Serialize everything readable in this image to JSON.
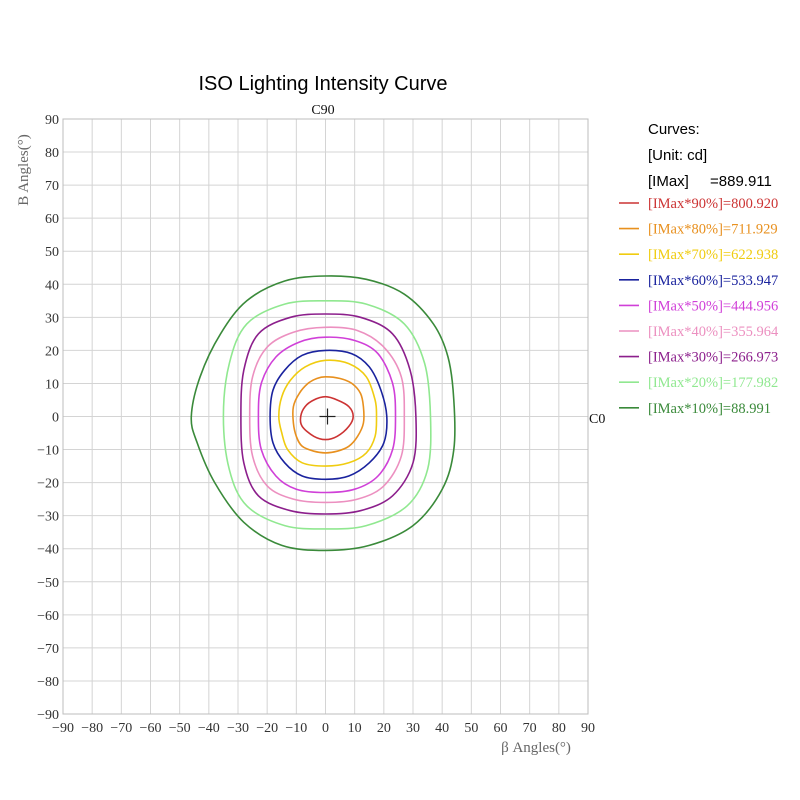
{
  "chart_data": {
    "type": "contour",
    "title": "ISO Lighting Intensity Curve",
    "xlabel": "β  Angles(°)",
    "ylabel": "B Angles(°)",
    "top_label": "C90",
    "right_label": "C0",
    "xlim": [
      -90,
      90
    ],
    "ylim": [
      -90,
      90
    ],
    "x_ticks": [
      -90,
      -80,
      -70,
      -60,
      -50,
      -40,
      -30,
      -20,
      -10,
      0,
      10,
      20,
      30,
      40,
      50,
      60,
      70,
      80,
      90
    ],
    "y_ticks": [
      90,
      80,
      70,
      60,
      50,
      40,
      30,
      20,
      10,
      0,
      -10,
      -20,
      -30,
      -40,
      -50,
      -60,
      -70,
      -80,
      -90
    ],
    "grid": true,
    "legend": {
      "position": "right",
      "header": [
        "Curves:",
        "[Unit: cd]"
      ],
      "imax_label": "[IMax]",
      "imax_value": "=889.911"
    },
    "series": [
      {
        "name": "[IMax*90%]=800.920",
        "color": "#cc3333",
        "points": [
          [
            0,
            6
          ],
          [
            4,
            5
          ],
          [
            8,
            3
          ],
          [
            9.5,
            0
          ],
          [
            8,
            -3
          ],
          [
            4,
            -6
          ],
          [
            0,
            -7
          ],
          [
            -4,
            -6
          ],
          [
            -8,
            -3
          ],
          [
            -8.5,
            0
          ],
          [
            -7,
            3
          ],
          [
            -4,
            5
          ]
        ]
      },
      {
        "name": "[IMax*80%]=711.929",
        "color": "#e8901e",
        "points": [
          [
            0,
            12
          ],
          [
            5,
            11.5
          ],
          [
            9,
            10
          ],
          [
            12,
            7
          ],
          [
            13,
            3
          ],
          [
            13,
            -2
          ],
          [
            11,
            -6
          ],
          [
            8,
            -9
          ],
          [
            4,
            -10.5
          ],
          [
            0,
            -11
          ],
          [
            -4,
            -10.5
          ],
          [
            -8,
            -9
          ],
          [
            -10,
            -6
          ],
          [
            -11,
            -2
          ],
          [
            -11,
            3
          ],
          [
            -9,
            7
          ],
          [
            -6,
            10
          ],
          [
            -3,
            11.5
          ]
        ]
      },
      {
        "name": "[IMax*70%]=622.938",
        "color": "#f0cc10",
        "points": [
          [
            0,
            17
          ],
          [
            8,
            16
          ],
          [
            14,
            12
          ],
          [
            17,
            5
          ],
          [
            17.5,
            0
          ],
          [
            17,
            -6
          ],
          [
            14,
            -11
          ],
          [
            8,
            -14
          ],
          [
            0,
            -15
          ],
          [
            -8,
            -14
          ],
          [
            -13,
            -10
          ],
          [
            -15,
            -5
          ],
          [
            -16,
            0
          ],
          [
            -15,
            6
          ],
          [
            -12,
            11
          ],
          [
            -7,
            15
          ]
        ]
      },
      {
        "name": "[IMax*60%]=533.947",
        "color": "#1a239e",
        "points": [
          [
            0,
            20
          ],
          [
            9,
            19
          ],
          [
            15,
            15
          ],
          [
            19,
            8
          ],
          [
            21,
            0
          ],
          [
            20,
            -8
          ],
          [
            15,
            -14
          ],
          [
            8,
            -18
          ],
          [
            0,
            -19
          ],
          [
            -8,
            -18
          ],
          [
            -14,
            -14
          ],
          [
            -18,
            -8
          ],
          [
            -19,
            0
          ],
          [
            -18,
            8
          ],
          [
            -14,
            14
          ],
          [
            -8,
            18.5
          ]
        ]
      },
      {
        "name": "[IMax*50%]=444.956",
        "color": "#d040d8",
        "points": [
          [
            0,
            24
          ],
          [
            10,
            23
          ],
          [
            18,
            19
          ],
          [
            23,
            10
          ],
          [
            24,
            0
          ],
          [
            23,
            -10
          ],
          [
            18,
            -18
          ],
          [
            10,
            -22
          ],
          [
            0,
            -23
          ],
          [
            -10,
            -22
          ],
          [
            -17,
            -18
          ],
          [
            -22,
            -10
          ],
          [
            -23,
            0
          ],
          [
            -22,
            10
          ],
          [
            -17,
            18
          ],
          [
            -9,
            22.5
          ]
        ]
      },
      {
        "name": "[IMax*40%]=355.964",
        "color": "#ec90c0",
        "points": [
          [
            0,
            27
          ],
          [
            11,
            26
          ],
          [
            20,
            21
          ],
          [
            26,
            12
          ],
          [
            27,
            0
          ],
          [
            26,
            -12
          ],
          [
            20,
            -21
          ],
          [
            11,
            -25
          ],
          [
            0,
            -26
          ],
          [
            -11,
            -25
          ],
          [
            -20,
            -21
          ],
          [
            -25,
            -12
          ],
          [
            -26,
            0
          ],
          [
            -25,
            12
          ],
          [
            -20,
            21
          ],
          [
            -11,
            25.5
          ]
        ]
      },
      {
        "name": "[IMax*30%]=266.973",
        "color": "#8c1f8c",
        "points": [
          [
            0,
            31
          ],
          [
            12,
            30
          ],
          [
            23,
            25
          ],
          [
            29,
            14
          ],
          [
            31,
            0
          ],
          [
            30,
            -14
          ],
          [
            23,
            -24
          ],
          [
            12,
            -28.5
          ],
          [
            0,
            -29.5
          ],
          [
            -12,
            -28.5
          ],
          [
            -23,
            -24
          ],
          [
            -28,
            -14
          ],
          [
            -29,
            0
          ],
          [
            -28,
            14
          ],
          [
            -23,
            25
          ],
          [
            -12,
            30
          ]
        ]
      },
      {
        "name": "[IMax*20%]=177.982",
        "color": "#90e890",
        "points": [
          [
            0,
            35
          ],
          [
            14,
            34
          ],
          [
            27,
            28
          ],
          [
            34,
            16
          ],
          [
            36,
            0
          ],
          [
            35,
            -16
          ],
          [
            28,
            -27
          ],
          [
            14,
            -33
          ],
          [
            0,
            -34
          ],
          [
            -14,
            -33
          ],
          [
            -27,
            -27
          ],
          [
            -33,
            -16
          ],
          [
            -35,
            0
          ],
          [
            -33,
            16
          ],
          [
            -27,
            28
          ],
          [
            -14,
            34
          ]
        ]
      },
      {
        "name": "[IMax*10%]=88.991",
        "color": "#3a8a3a",
        "points": [
          [
            0,
            42.5
          ],
          [
            14,
            41.5
          ],
          [
            27,
            37
          ],
          [
            37,
            28
          ],
          [
            42,
            18
          ],
          [
            44,
            5
          ],
          [
            44,
            -10
          ],
          [
            40,
            -22
          ],
          [
            30,
            -33
          ],
          [
            15,
            -39
          ],
          [
            0,
            -40.5
          ],
          [
            -15,
            -39
          ],
          [
            -28,
            -32
          ],
          [
            -38,
            -20
          ],
          [
            -44,
            -8
          ],
          [
            -46,
            0
          ],
          [
            -43,
            12
          ],
          [
            -36,
            25
          ],
          [
            -27,
            35
          ],
          [
            -14,
            41
          ]
        ]
      }
    ]
  }
}
